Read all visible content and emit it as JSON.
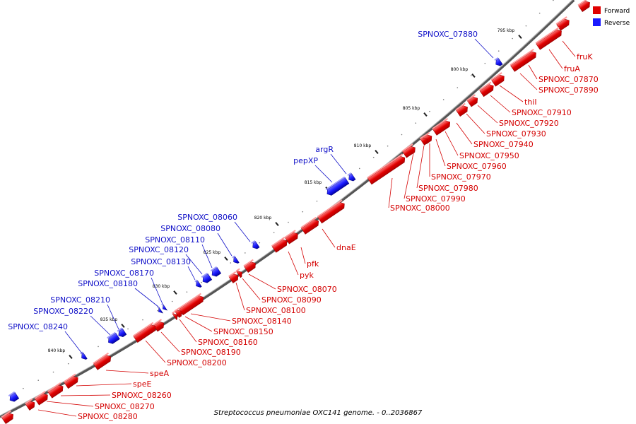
{
  "caption": "Streptococcus pneumoniae OXC141 genome. - 0..2036867",
  "legend": {
    "forward": {
      "label": "Forward",
      "color": "#e00000"
    },
    "reverse": {
      "label": "Reverse",
      "color": "#1a1aff"
    }
  },
  "colors": {
    "forward_top": "#ff7070",
    "forward_bottom": "#b00000",
    "reverse_top": "#6a6aff",
    "reverse_bottom": "#0000a0",
    "label_forward": "#d40000",
    "label_reverse": "#1010c8",
    "backbone": "#777777"
  },
  "ticks": [
    "795 kbp",
    "800 kbp",
    "805 kbp",
    "810 kbp",
    "815 kbp",
    "820 kbp",
    "825 kbp",
    "830 kbp",
    "835 kbp",
    "840 kbp"
  ],
  "forward_genes": [
    {
      "name": "fruK"
    },
    {
      "name": "fruA"
    },
    {
      "name": "SPNOXC_07870"
    },
    {
      "name": "SPNOXC_07890"
    },
    {
      "name": "thiI"
    },
    {
      "name": "SPNOXC_07910"
    },
    {
      "name": "SPNOXC_07920"
    },
    {
      "name": "SPNOXC_07930"
    },
    {
      "name": "SPNOXC_07940"
    },
    {
      "name": "SPNOXC_07950"
    },
    {
      "name": "SPNOXC_07960"
    },
    {
      "name": "SPNOXC_07970"
    },
    {
      "name": "SPNOXC_07980"
    },
    {
      "name": "SPNOXC_07990"
    },
    {
      "name": "SPNOXC_08000"
    },
    {
      "name": "dnaE"
    },
    {
      "name": "pfk"
    },
    {
      "name": "pyk"
    },
    {
      "name": "SPNOXC_08070"
    },
    {
      "name": "SPNOXC_08090"
    },
    {
      "name": "SPNOXC_08100"
    },
    {
      "name": "SPNOXC_08140"
    },
    {
      "name": "SPNOXC_08150"
    },
    {
      "name": "SPNOXC_08160"
    },
    {
      "name": "SPNOXC_08190"
    },
    {
      "name": "SPNOXC_08200"
    },
    {
      "name": "speA"
    },
    {
      "name": "speE"
    },
    {
      "name": "SPNOXC_08260"
    },
    {
      "name": "SPNOXC_08270"
    },
    {
      "name": "SPNOXC_08280"
    }
  ],
  "reverse_genes": [
    {
      "name": "SPNOXC_07880"
    },
    {
      "name": "argR"
    },
    {
      "name": "pepXP"
    },
    {
      "name": "SPNOXC_08060"
    },
    {
      "name": "SPNOXC_08080"
    },
    {
      "name": "SPNOXC_08110"
    },
    {
      "name": "SPNOXC_08120"
    },
    {
      "name": "SPNOXC_08130"
    },
    {
      "name": "SPNOXC_08170"
    },
    {
      "name": "SPNOXC_08180"
    },
    {
      "name": "SPNOXC_08210"
    },
    {
      "name": "SPNOXC_08220"
    },
    {
      "name": "SPNOXC_08240"
    }
  ]
}
